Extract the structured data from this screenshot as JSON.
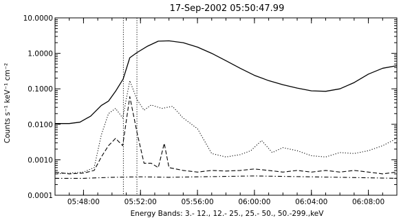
{
  "chart_data": {
    "type": "line",
    "title": "17-Sep-2002 05:50:47.99",
    "xlabel": "Energy Bands:  3.- 12., 12.- 25., 25.- 50., 50.-299.,keV",
    "ylabel": "Counts s⁻¹ keV⁻¹ cm⁻²",
    "yscale": "log",
    "ylim": [
      0.0001,
      10.0
    ],
    "xlim": [
      "05:46:00",
      "06:10:00"
    ],
    "x_ticks": [
      "05:48:00",
      "05:52:00",
      "05:56:00",
      "06:00:00",
      "06:04:00",
      "06:08:00"
    ],
    "y_ticks": [
      "10.0000",
      "1.0000",
      "0.1000",
      "0.0100",
      "0.0010",
      "0.0001"
    ],
    "y_tick_values": [
      10,
      1,
      0.1,
      0.01,
      0.001,
      0.0001
    ],
    "vertical_lines": [
      "05:50:47.99",
      "05:51:45"
    ],
    "series": [
      {
        "style": "solid",
        "points": [
          [
            "05:46:00",
            0.0105
          ],
          [
            "05:47:00",
            0.0105
          ],
          [
            "05:47:45",
            0.0115
          ],
          [
            "05:48:30",
            0.017
          ],
          [
            "05:49:15",
            0.034
          ],
          [
            "05:49:45",
            0.045
          ],
          [
            "05:50:15",
            0.085
          ],
          [
            "05:50:47",
            0.19
          ],
          [
            "05:51:15",
            0.75
          ],
          [
            "05:51:45",
            1.05
          ],
          [
            "05:52:30",
            1.6
          ],
          [
            "05:53:15",
            2.2
          ],
          [
            "05:54:00",
            2.25
          ],
          [
            "05:55:00",
            2.0
          ],
          [
            "05:56:00",
            1.5
          ],
          [
            "05:57:00",
            1.0
          ],
          [
            "05:58:00",
            0.62
          ],
          [
            "05:59:00",
            0.38
          ],
          [
            "06:00:00",
            0.24
          ],
          [
            "06:01:00",
            0.17
          ],
          [
            "06:02:00",
            0.13
          ],
          [
            "06:03:00",
            0.105
          ],
          [
            "06:04:00",
            0.088
          ],
          [
            "06:05:00",
            0.085
          ],
          [
            "06:06:00",
            0.1
          ],
          [
            "06:07:00",
            0.15
          ],
          [
            "06:08:00",
            0.26
          ],
          [
            "06:09:00",
            0.38
          ],
          [
            "06:10:00",
            0.45
          ]
        ]
      },
      {
        "style": "dotted",
        "points": [
          [
            "05:46:00",
            0.0004
          ],
          [
            "05:47:00",
            0.00042
          ],
          [
            "05:48:00",
            0.00045
          ],
          [
            "05:48:45",
            0.0006
          ],
          [
            "05:49:15",
            0.005
          ],
          [
            "05:49:45",
            0.02
          ],
          [
            "05:50:15",
            0.028
          ],
          [
            "05:50:45",
            0.015
          ],
          [
            "05:51:15",
            0.17
          ],
          [
            "05:51:45",
            0.05
          ],
          [
            "05:52:15",
            0.025
          ],
          [
            "05:52:45",
            0.035
          ],
          [
            "05:53:30",
            0.028
          ],
          [
            "05:54:15",
            0.032
          ],
          [
            "05:55:00",
            0.015
          ],
          [
            "05:56:00",
            0.0075
          ],
          [
            "05:57:00",
            0.0015
          ],
          [
            "05:58:00",
            0.0012
          ],
          [
            "05:59:00",
            0.0014
          ],
          [
            "05:59:45",
            0.0018
          ],
          [
            "06:00:30",
            0.0035
          ],
          [
            "06:01:15",
            0.0016
          ],
          [
            "06:02:00",
            0.0022
          ],
          [
            "06:03:00",
            0.0018
          ],
          [
            "06:04:00",
            0.0013
          ],
          [
            "06:05:00",
            0.0012
          ],
          [
            "06:06:00",
            0.0016
          ],
          [
            "06:07:00",
            0.0015
          ],
          [
            "06:08:00",
            0.0018
          ],
          [
            "06:09:00",
            0.0025
          ],
          [
            "06:10:00",
            0.004
          ]
        ]
      },
      {
        "style": "dashed",
        "points": [
          [
            "05:46:00",
            0.00045
          ],
          [
            "05:47:00",
            0.0004
          ],
          [
            "05:48:00",
            0.00042
          ],
          [
            "05:48:45",
            0.0005
          ],
          [
            "05:49:15",
            0.0012
          ],
          [
            "05:49:45",
            0.0025
          ],
          [
            "05:50:15",
            0.004
          ],
          [
            "05:50:45",
            0.0025
          ],
          [
            "05:51:15",
            0.06
          ],
          [
            "05:51:45",
            0.006
          ],
          [
            "05:52:15",
            0.0008
          ],
          [
            "05:52:45",
            0.0008
          ],
          [
            "05:53:15",
            0.0006
          ],
          [
            "05:53:40",
            0.0029
          ],
          [
            "05:54:00",
            0.0006
          ],
          [
            "05:55:00",
            0.0005
          ],
          [
            "05:56:00",
            0.00045
          ],
          [
            "05:57:00",
            0.0005
          ],
          [
            "05:58:00",
            0.00048
          ],
          [
            "05:59:00",
            0.0005
          ],
          [
            "06:00:00",
            0.00055
          ],
          [
            "06:01:00",
            0.0005
          ],
          [
            "06:02:00",
            0.00045
          ],
          [
            "06:03:00",
            0.0005
          ],
          [
            "06:04:00",
            0.00045
          ],
          [
            "06:05:00",
            0.0005
          ],
          [
            "06:06:00",
            0.00045
          ],
          [
            "06:07:00",
            0.0005
          ],
          [
            "06:08:00",
            0.00045
          ],
          [
            "06:09:00",
            0.0004
          ],
          [
            "06:10:00",
            0.00045
          ]
        ]
      },
      {
        "style": "dash-dot",
        "points": [
          [
            "05:46:00",
            0.0003
          ],
          [
            "05:48:00",
            0.0003
          ],
          [
            "05:50:00",
            0.00032
          ],
          [
            "05:52:00",
            0.00033
          ],
          [
            "05:54:00",
            0.00032
          ],
          [
            "05:56:00",
            0.00033
          ],
          [
            "05:58:00",
            0.00034
          ],
          [
            "06:00:00",
            0.00035
          ],
          [
            "06:02:00",
            0.00034
          ],
          [
            "06:04:00",
            0.00033
          ],
          [
            "06:06:00",
            0.00032
          ],
          [
            "06:08:00",
            0.00031
          ],
          [
            "06:10:00",
            0.0003
          ]
        ]
      }
    ]
  }
}
